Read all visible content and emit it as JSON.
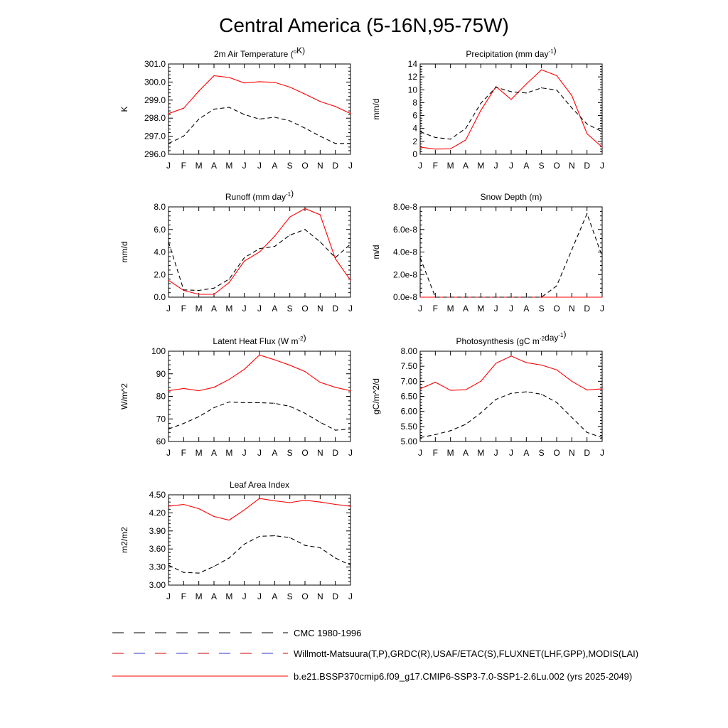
{
  "page": {
    "title": "Central America (5-16N,95-75W)"
  },
  "months": [
    "J",
    "F",
    "M",
    "A",
    "M",
    "J",
    "J",
    "A",
    "S",
    "O",
    "N",
    "D",
    "J"
  ],
  "colors": {
    "model": "#ff0000",
    "obs": "#000000",
    "obs_legend": "#cc0000",
    "obs_legend_alt": "#3333cc"
  },
  "legend": [
    {
      "label": "CMC 1980-1996",
      "style": "dash-black"
    },
    {
      "label": "Willmott-Matsuura(T,P),GRDC(R),USAF/ETAC(S),FLUXNET(LHF,GPP),MODIS(LAI)",
      "style": "dash-mixed"
    },
    {
      "label": "b.e21.BSSP370cmip6.f09_g17.CMIP6-SSP3-7.0-SSP1-2.6Lu.002 (yrs 2025-2049)",
      "style": "solid-red"
    }
  ],
  "chart_data": [
    {
      "type": "line",
      "title": "2m Air Temperature (",
      "title_sup": "o",
      "title_tail": "K)",
      "ylabel": "K",
      "ylim": [
        296.0,
        301.0
      ],
      "yticks": [
        "296.0",
        "297.0",
        "298.0",
        "299.0",
        "300.0",
        "301.0"
      ],
      "series": [
        {
          "style": "solid-red",
          "values": [
            298.25,
            298.55,
            299.5,
            300.35,
            300.25,
            299.95,
            300.02,
            299.98,
            299.72,
            299.33,
            298.92,
            298.65,
            298.25
          ]
        },
        {
          "style": "dash-black",
          "values": [
            296.6,
            297.0,
            297.95,
            298.5,
            298.6,
            298.2,
            297.95,
            298.05,
            297.85,
            297.45,
            297.0,
            296.6,
            296.6
          ]
        }
      ]
    },
    {
      "type": "line",
      "title": "Precipitation (mm day",
      "title_sup": "-1",
      "title_tail": ")",
      "ylabel": "mm/d",
      "ylim": [
        0,
        14
      ],
      "yticks": [
        "0",
        "2",
        "4",
        "6",
        "8",
        "10",
        "12",
        "14"
      ],
      "series": [
        {
          "style": "solid-red",
          "values": [
            1.1,
            0.8,
            0.85,
            2.2,
            6.8,
            10.5,
            8.5,
            10.9,
            13.1,
            12.2,
            9.1,
            3.2,
            1.1
          ]
        },
        {
          "style": "dash-black",
          "values": [
            3.5,
            2.6,
            2.35,
            4.0,
            7.9,
            10.4,
            9.7,
            9.5,
            10.3,
            9.95,
            7.2,
            4.7,
            3.5
          ]
        }
      ]
    },
    {
      "type": "line",
      "title": "Runoff (mm day",
      "title_sup": "-1",
      "title_tail": ")",
      "ylabel": "mm/d",
      "ylim": [
        0,
        8
      ],
      "yticks": [
        "0.0",
        "2.0",
        "4.0",
        "6.0",
        "8.0"
      ],
      "series": [
        {
          "style": "solid-red",
          "values": [
            1.5,
            0.6,
            0.25,
            0.25,
            1.3,
            3.2,
            4.0,
            5.4,
            7.1,
            7.85,
            7.3,
            3.4,
            1.5
          ]
        },
        {
          "style": "dash-black",
          "values": [
            4.9,
            0.65,
            0.6,
            0.8,
            1.6,
            3.5,
            4.3,
            4.5,
            5.5,
            6.0,
            4.9,
            3.5,
            4.7
          ]
        }
      ]
    },
    {
      "type": "line",
      "title": "Snow Depth (m)",
      "title_sup": "",
      "title_tail": "",
      "ylabel": "m/d",
      "ylim": [
        0,
        8e-08
      ],
      "yticks": [
        "0.0e-8",
        "2.0e-8",
        "4.0e-8",
        "6.0e-8",
        "8.0e-8"
      ],
      "series": [
        {
          "style": "solid-red",
          "values": [
            0,
            0,
            0,
            0,
            0,
            0,
            0,
            0,
            0,
            0,
            0,
            0,
            0
          ]
        },
        {
          "style": "dash-black",
          "values": [
            3.5e-08,
            0,
            0,
            0,
            0,
            0,
            0,
            0,
            0,
            1e-08,
            4.2e-08,
            7.4e-08,
            3.6e-08
          ]
        }
      ]
    },
    {
      "type": "line",
      "title": "Latent Heat Flux (W m",
      "title_sup": "-2",
      "title_tail": ")",
      "ylabel": "W/m^2",
      "ylim": [
        60,
        100
      ],
      "yticks": [
        "60",
        "70",
        "80",
        "90",
        "100"
      ],
      "series": [
        {
          "style": "solid-red",
          "values": [
            82.5,
            83.5,
            82.5,
            84.0,
            87.5,
            92.0,
            98.3,
            96.2,
            93.8,
            91.0,
            86.2,
            84.0,
            82.5
          ]
        },
        {
          "style": "dash-black",
          "values": [
            65.5,
            68.0,
            71.0,
            75.0,
            77.5,
            77.2,
            77.2,
            76.9,
            75.6,
            72.5,
            68.5,
            65.0,
            65.5
          ]
        }
      ]
    },
    {
      "type": "line",
      "title": "Photosynthesis (gC m",
      "title_sup": "-2",
      "title_tail": "day",
      "title_sup2": "-1",
      "title_tail2": ")",
      "ylabel": "gC/m^2/d",
      "ylim": [
        5.0,
        8.0
      ],
      "yticks": [
        "5.00",
        "5.50",
        "6.00",
        "6.50",
        "7.00",
        "7.50",
        "8.00"
      ],
      "series": [
        {
          "style": "solid-red",
          "values": [
            6.75,
            6.97,
            6.7,
            6.72,
            7.0,
            7.6,
            7.84,
            7.62,
            7.54,
            7.38,
            7.0,
            6.71,
            6.75
          ]
        },
        {
          "style": "dash-black",
          "values": [
            5.13,
            5.23,
            5.36,
            5.57,
            5.95,
            6.4,
            6.6,
            6.65,
            6.57,
            6.3,
            5.8,
            5.3,
            5.13
          ]
        }
      ]
    },
    {
      "type": "line",
      "title": "Leaf Area Index",
      "title_sup": "",
      "title_tail": "",
      "ylabel": "m2/m2",
      "ylim": [
        3.0,
        4.5
      ],
      "yticks": [
        "3.00",
        "3.30",
        "3.60",
        "3.90",
        "4.20",
        "4.50"
      ],
      "series": [
        {
          "style": "solid-red",
          "values": [
            4.31,
            4.34,
            4.27,
            4.14,
            4.08,
            4.25,
            4.44,
            4.4,
            4.37,
            4.41,
            4.38,
            4.34,
            4.31
          ]
        },
        {
          "style": "dash-black",
          "values": [
            3.33,
            3.21,
            3.2,
            3.31,
            3.45,
            3.68,
            3.81,
            3.82,
            3.79,
            3.66,
            3.62,
            3.45,
            3.33
          ]
        }
      ]
    }
  ]
}
